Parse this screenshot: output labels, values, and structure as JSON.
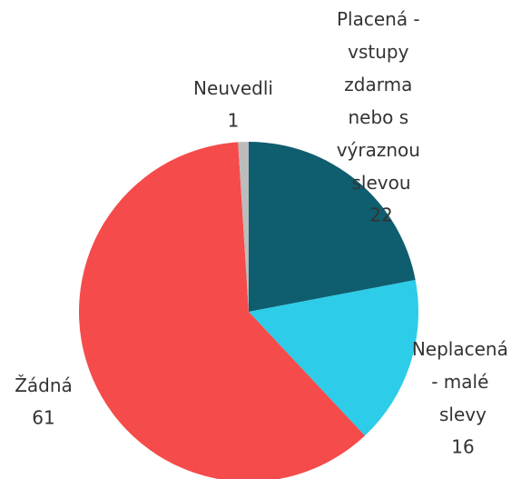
{
  "chart_data": {
    "type": "pie",
    "categories": [
      "Placená - vstupy zdarma nebo s výraznou slevou",
      "Neplacená - malé slevy",
      "Žádná",
      "Neuvedli"
    ],
    "values": [
      22,
      16,
      61,
      1
    ],
    "colors": [
      "#0e5e6f",
      "#2dcce8",
      "#f54b4b",
      "#bcbcbc"
    ]
  }
}
